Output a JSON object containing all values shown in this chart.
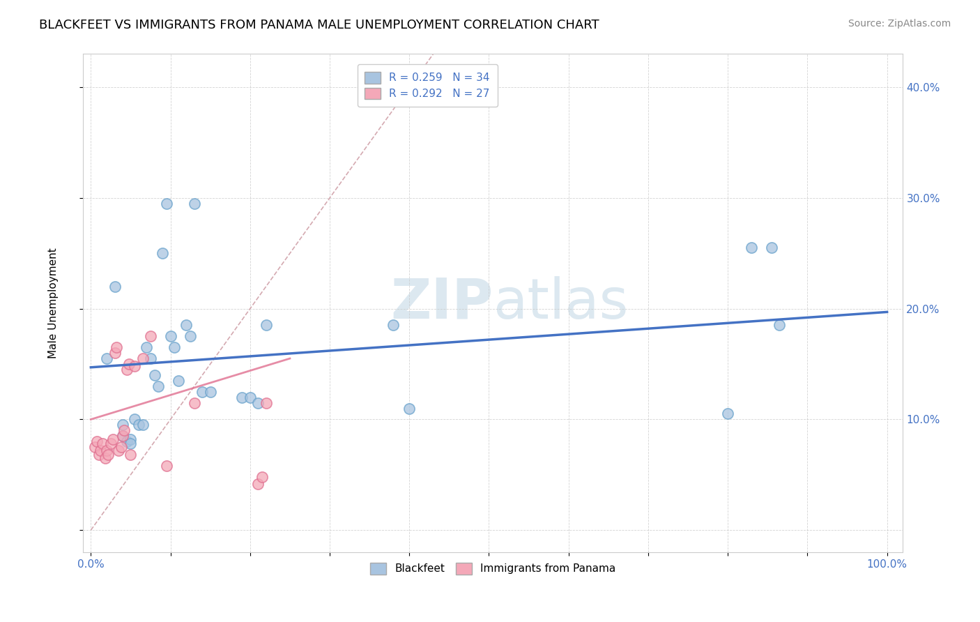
{
  "title": "BLACKFEET VS IMMIGRANTS FROM PANAMA MALE UNEMPLOYMENT CORRELATION CHART",
  "source": "Source: ZipAtlas.com",
  "ylabel": "Male Unemployment",
  "xlim": [
    -0.01,
    1.02
  ],
  "ylim": [
    -0.02,
    0.43
  ],
  "xticks": [
    0.0,
    0.1,
    0.2,
    0.3,
    0.4,
    0.5,
    0.6,
    0.7,
    0.8,
    0.9,
    1.0
  ],
  "yticks": [
    0.0,
    0.1,
    0.2,
    0.3,
    0.4
  ],
  "xtick_labels": [
    "0.0%",
    "",
    "",
    "",
    "",
    "",
    "",
    "",
    "",
    "",
    "100.0%"
  ],
  "legend1_label": "R = 0.259   N = 34",
  "legend2_label": "R = 0.292   N = 27",
  "blackfeet_x": [
    0.02,
    0.03,
    0.04,
    0.04,
    0.045,
    0.05,
    0.05,
    0.055,
    0.06,
    0.065,
    0.07,
    0.075,
    0.08,
    0.085,
    0.09,
    0.095,
    0.1,
    0.105,
    0.11,
    0.12,
    0.125,
    0.13,
    0.14,
    0.15,
    0.19,
    0.2,
    0.21,
    0.22,
    0.38,
    0.4,
    0.8,
    0.83,
    0.855,
    0.865
  ],
  "blackfeet_y": [
    0.155,
    0.22,
    0.095,
    0.085,
    0.08,
    0.082,
    0.078,
    0.1,
    0.095,
    0.095,
    0.165,
    0.155,
    0.14,
    0.13,
    0.25,
    0.295,
    0.175,
    0.165,
    0.135,
    0.185,
    0.175,
    0.295,
    0.125,
    0.125,
    0.12,
    0.12,
    0.115,
    0.185,
    0.185,
    0.11,
    0.105,
    0.255,
    0.255,
    0.185
  ],
  "panama_x": [
    0.005,
    0.008,
    0.01,
    0.012,
    0.015,
    0.018,
    0.02,
    0.022,
    0.025,
    0.028,
    0.03,
    0.032,
    0.035,
    0.038,
    0.04,
    0.042,
    0.045,
    0.048,
    0.05,
    0.055,
    0.065,
    0.075,
    0.095,
    0.13,
    0.21,
    0.215,
    0.22
  ],
  "panama_y": [
    0.075,
    0.08,
    0.068,
    0.072,
    0.078,
    0.065,
    0.072,
    0.068,
    0.078,
    0.082,
    0.16,
    0.165,
    0.072,
    0.075,
    0.085,
    0.09,
    0.145,
    0.15,
    0.068,
    0.148,
    0.155,
    0.175,
    0.058,
    0.115,
    0.042,
    0.048,
    0.115
  ],
  "blackfeet_trend_x": [
    0.0,
    1.0
  ],
  "blackfeet_trend_y": [
    0.147,
    0.197
  ],
  "panama_trend_x": [
    0.0,
    0.25
  ],
  "panama_trend_y": [
    0.1,
    0.155
  ],
  "ref_line_x": [
    0.0,
    0.43
  ],
  "ref_line_y": [
    0.0,
    0.43
  ],
  "blackfeet_color": "#a8c4e0",
  "blackfeet_edge": "#6aa3cc",
  "panama_color": "#f4a8b8",
  "panama_edge": "#e07090",
  "blackfeet_trend_color": "#4472c4",
  "panama_trend_color": "#e07090",
  "ref_line_color": "#d0a0a8",
  "watermark_color": "#dce8f0",
  "title_fontsize": 13,
  "axis_label_fontsize": 11,
  "tick_fontsize": 11,
  "legend_fontsize": 11,
  "source_fontsize": 10,
  "scatter_size": 120
}
